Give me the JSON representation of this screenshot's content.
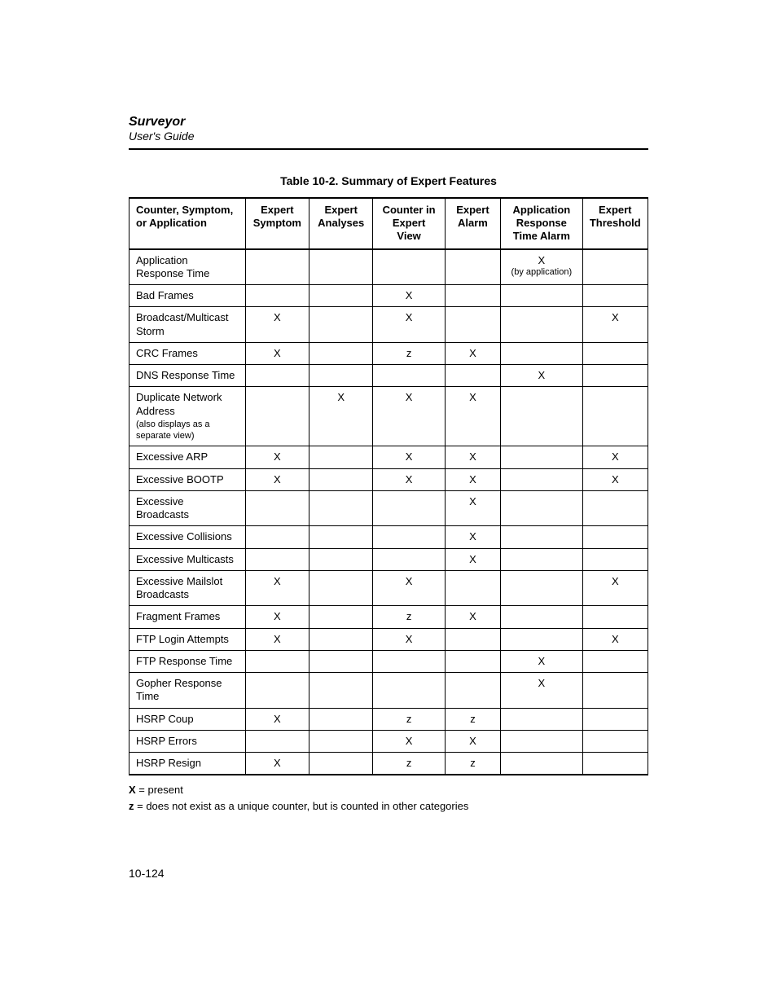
{
  "doc": {
    "title": "Surveyor",
    "subtitle": "User's Guide",
    "page_number": "10-124"
  },
  "table": {
    "caption": "Table 10-2. Summary of Expert Features",
    "columns": [
      {
        "label": "Counter, Symptom, or Application",
        "align": "left"
      },
      {
        "label": "Expert Symptom",
        "align": "center"
      },
      {
        "label": "Expert Analyses",
        "align": "center"
      },
      {
        "label": "Counter in Expert View",
        "align": "center"
      },
      {
        "label": "Expert Alarm",
        "align": "center"
      },
      {
        "label": "Application Response Time Alarm",
        "align": "center"
      },
      {
        "label": "Expert Threshold",
        "align": "center"
      }
    ],
    "rows": [
      {
        "label": "Application Response Time",
        "c1": "",
        "c2": "",
        "c3": "",
        "c4": "",
        "c5": "X",
        "c5_sub": "(by application)",
        "c6": ""
      },
      {
        "label": "Bad Frames",
        "c1": "",
        "c2": "",
        "c3": "X",
        "c4": "",
        "c5": "",
        "c6": ""
      },
      {
        "label": "Broadcast/Multicast Storm",
        "c1": "X",
        "c2": "",
        "c3": "X",
        "c4": "",
        "c5": "",
        "c6": "X"
      },
      {
        "label": "CRC Frames",
        "c1": "X",
        "c2": "",
        "c3": "z",
        "c4": "X",
        "c5": "",
        "c6": ""
      },
      {
        "label": "DNS Response Time",
        "c1": "",
        "c2": "",
        "c3": "",
        "c4": "",
        "c5": "X",
        "c6": ""
      },
      {
        "label": "Duplicate Network Address",
        "subnote": "(also displays as a separate view)",
        "c1": "",
        "c2": "X",
        "c3": "X",
        "c4": "X",
        "c5": "",
        "c6": ""
      },
      {
        "label": "Excessive ARP",
        "c1": "X",
        "c2": "",
        "c3": "X",
        "c4": "X",
        "c5": "",
        "c6": "X"
      },
      {
        "label": "Excessive BOOTP",
        "c1": "X",
        "c2": "",
        "c3": "X",
        "c4": "X",
        "c5": "",
        "c6": "X"
      },
      {
        "label": "Excessive Broadcasts",
        "c1": "",
        "c2": "",
        "c3": "",
        "c4": "X",
        "c5": "",
        "c6": ""
      },
      {
        "label": "Excessive Collisions",
        "c1": "",
        "c2": "",
        "c3": "",
        "c4": "X",
        "c5": "",
        "c6": ""
      },
      {
        "label": "Excessive Multicasts",
        "c1": "",
        "c2": "",
        "c3": "",
        "c4": "X",
        "c5": "",
        "c6": ""
      },
      {
        "label": "Excessive Mailslot Broadcasts",
        "c1": "X",
        "c2": "",
        "c3": "X",
        "c4": "",
        "c5": "",
        "c6": "X"
      },
      {
        "label": "Fragment Frames",
        "c1": "X",
        "c2": "",
        "c3": "z",
        "c4": "X",
        "c5": "",
        "c6": ""
      },
      {
        "label": "FTP Login Attempts",
        "c1": "X",
        "c2": "",
        "c3": "X",
        "c4": "",
        "c5": "",
        "c6": "X"
      },
      {
        "label": "FTP Response Time",
        "c1": "",
        "c2": "",
        "c3": "",
        "c4": "",
        "c5": "X",
        "c6": ""
      },
      {
        "label": "Gopher Response Time",
        "c1": "",
        "c2": "",
        "c3": "",
        "c4": "",
        "c5": "X",
        "c6": ""
      },
      {
        "label": "HSRP Coup",
        "c1": "X",
        "c2": "",
        "c3": "z",
        "c4": "z",
        "c5": "",
        "c6": ""
      },
      {
        "label": "HSRP Errors",
        "c1": "",
        "c2": "",
        "c3": "X",
        "c4": "X",
        "c5": "",
        "c6": ""
      },
      {
        "label": "HSRP Resign",
        "c1": "X",
        "c2": "",
        "c3": "z",
        "c4": "z",
        "c5": "",
        "c6": ""
      }
    ]
  },
  "legend": {
    "x_key": "X",
    "x_text": " = present",
    "z_key": "z",
    "z_text": " = does not exist as a unique counter, but is counted in other categories"
  }
}
